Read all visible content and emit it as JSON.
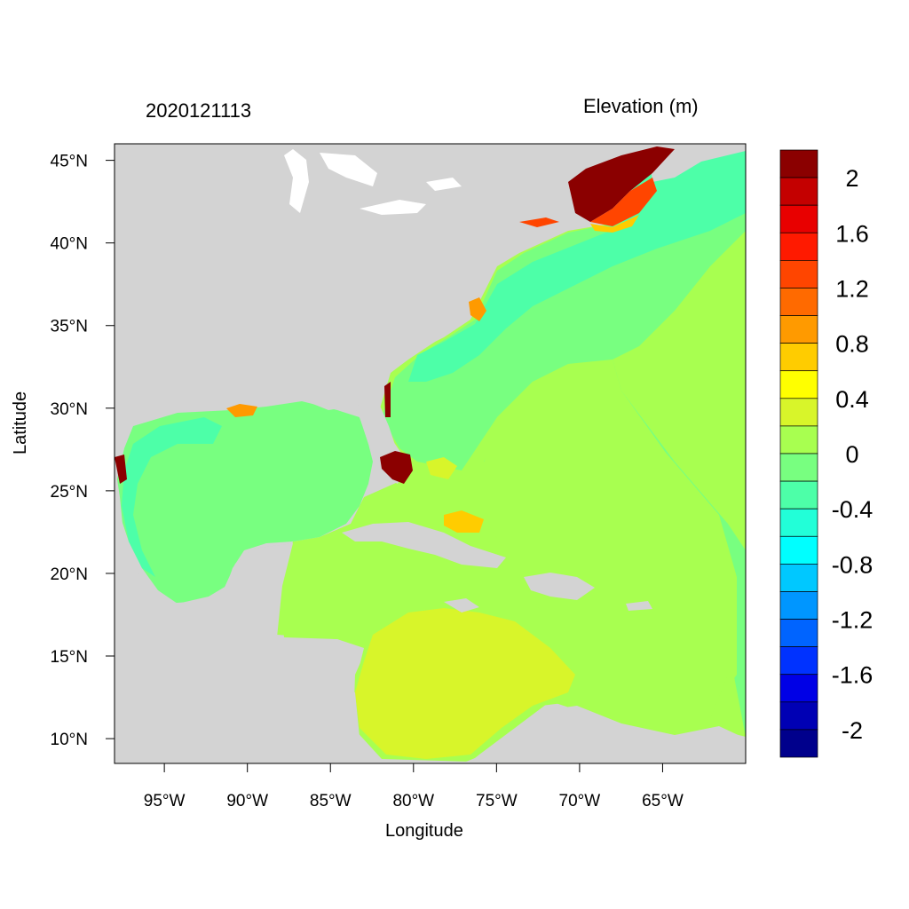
{
  "header": {
    "timestamp": "2020121113",
    "variable": "Elevation (m)"
  },
  "axes": {
    "xlabel": "Longitude",
    "ylabel": "Latitude",
    "x_ticks": [
      "95°W",
      "90°W",
      "85°W",
      "80°W",
      "75°W",
      "70°W",
      "65°W"
    ],
    "x_tick_values": [
      -95,
      -90,
      -85,
      -80,
      -75,
      -70,
      -65
    ],
    "y_ticks": [
      "10°N",
      "15°N",
      "20°N",
      "25°N",
      "30°N",
      "35°N",
      "40°N",
      "45°N"
    ],
    "y_tick_values": [
      10,
      15,
      20,
      25,
      30,
      35,
      40,
      45
    ],
    "lon_range": [
      -98,
      -60
    ],
    "lat_range": [
      8.5,
      46
    ]
  },
  "colorbar": {
    "labels": [
      "2",
      "1.6",
      "1.2",
      "0.8",
      "0.4",
      "0",
      "-0.4",
      "-0.8",
      "-1.2",
      "-1.6",
      "-2"
    ],
    "colors": [
      "#8b0000",
      "#c40000",
      "#e80000",
      "#ff1a00",
      "#ff4500",
      "#ff6a00",
      "#ff9a00",
      "#ffcc00",
      "#ffff00",
      "#d8f52a",
      "#a8ff50",
      "#78ff80",
      "#4dffa8",
      "#22ffd8",
      "#00ffff",
      "#00c8ff",
      "#0096ff",
      "#0064ff",
      "#0032ff",
      "#0000e6",
      "#0000b4",
      "#00008c"
    ]
  },
  "map_colors": {
    "land": "#d3d3d3",
    "water": "#ffffff",
    "ocean_zero": "#a8ff50",
    "ocean_shelf": "#78ff80",
    "ocean_neg": "#4dffa8",
    "ocean_neg2": "#22ffd8",
    "caribbean_basin": "#d8f52a",
    "surge_high": "#8b0000",
    "surge_mid": "#ff4500",
    "surge_low": "#ffcc00"
  }
}
